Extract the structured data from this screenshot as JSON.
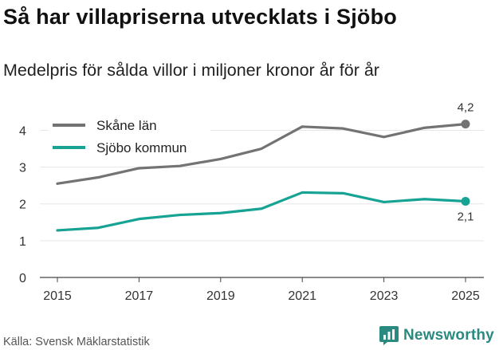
{
  "header": {
    "title": "Så har villapriserna utvecklats i Sjöbo",
    "subtitle": "Medelpris för sålda villor i miljoner kronor år för år"
  },
  "footer": {
    "source": "Källa: Svensk Mäklarstatistik",
    "brand": "Newsworthy",
    "brand_color": "#2a8a80",
    "brand_icon": "bar-chart-logo-icon"
  },
  "chart_data": {
    "type": "line",
    "title": "Så har villapriserna utvecklats i Sjöbo",
    "subtitle": "Medelpris för sålda villor i miljoner kronor år för år",
    "xlabel": "",
    "ylabel": "",
    "x": [
      2015,
      2016,
      2017,
      2018,
      2019,
      2020,
      2021,
      2022,
      2023,
      2024,
      2025
    ],
    "xlim": [
      2015,
      2025
    ],
    "ylim": [
      0,
      4.4
    ],
    "x_ticks": [
      "2015",
      "2017",
      "2019",
      "2021",
      "2023",
      "2025"
    ],
    "y_ticks": [
      "0",
      "1",
      "2",
      "3",
      "4"
    ],
    "grid": "horizontal",
    "legend": "top-left",
    "series": [
      {
        "name": "Skåne län",
        "color": "#737373",
        "values": [
          2.55,
          2.72,
          2.97,
          3.03,
          3.22,
          3.5,
          4.1,
          4.05,
          3.82,
          4.07,
          4.17
        ],
        "end_label": "4,2"
      },
      {
        "name": "Sjöbo kommun",
        "color": "#16a394",
        "values": [
          1.28,
          1.35,
          1.59,
          1.7,
          1.75,
          1.87,
          2.31,
          2.29,
          2.05,
          2.13,
          2.07
        ],
        "end_label": "2,1"
      }
    ]
  }
}
